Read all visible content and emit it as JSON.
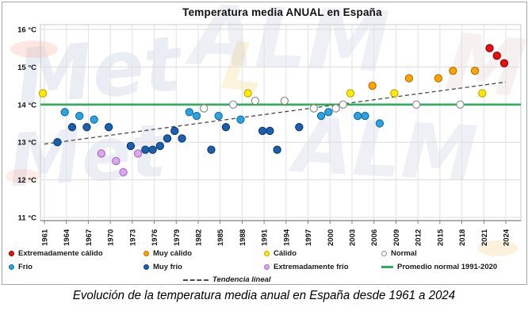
{
  "figure": {
    "title": "Temperatura media ANUAL en España",
    "caption": "Evolución de la temperatura media anual en España desde 1961 a 2024",
    "watermark_words": [
      "Met",
      "ALM"
    ]
  },
  "chart_data": {
    "type": "scatter",
    "title": "Temperatura media ANUAL en España",
    "xlabel": "",
    "ylabel": "",
    "ylim": [
      11,
      16
    ],
    "y_ticks": [
      16,
      15,
      14,
      13,
      12,
      11
    ],
    "y_tick_labels": [
      "16 °C",
      "15 °C",
      "14 °C",
      "13 °C",
      "12 °C",
      "11 °C"
    ],
    "x_ticks": [
      1961,
      1964,
      1967,
      1970,
      1973,
      1976,
      1979,
      1982,
      1985,
      1988,
      1991,
      1994,
      1997,
      2000,
      2003,
      2006,
      2009,
      2012,
      2015,
      2018,
      2021,
      2024
    ],
    "xlim": [
      1961,
      2024
    ],
    "grid": true,
    "legend_position": "bottom",
    "categories": {
      "extremadamente_calido": {
        "label": "Extremadamente cálido",
        "fill": "#e81010",
        "stroke": "#990000"
      },
      "muy_calido": {
        "label": "Muy cálido",
        "fill": "#f9a602",
        "stroke": "#c07000"
      },
      "calido": {
        "label": "Cálido",
        "fill": "#ffec00",
        "stroke": "#caa800"
      },
      "normal": {
        "label": "Normal",
        "fill": "#ffffff",
        "stroke": "#8c8c8c"
      },
      "frio": {
        "label": "Frío",
        "fill": "#2ba3e0",
        "stroke": "#1672a8"
      },
      "muy_frio": {
        "label": "Muy frío",
        "fill": "#1a5fb0",
        "stroke": "#123f73"
      },
      "extremadamente_frio": {
        "label": "Extremadamente frío",
        "fill": "#d9a9e8",
        "stroke": "#a86fc8"
      }
    },
    "normal_line": {
      "value": 14.0,
      "label": "Promedio normal 1991-2020",
      "color": "#2cae5e"
    },
    "trend_line": {
      "label": "Tendencia lineal",
      "color": "#4a4a4a",
      "from": {
        "year": 1961,
        "temp": 12.95
      },
      "to": {
        "year": 2024,
        "temp": 14.6
      }
    },
    "points": [
      {
        "year": 1961,
        "temp": 14.3,
        "cat": "calido"
      },
      {
        "year": 1963,
        "temp": 13.0,
        "cat": "muy_frio"
      },
      {
        "year": 1964,
        "temp": 13.8,
        "cat": "frio"
      },
      {
        "year": 1965,
        "temp": 13.4,
        "cat": "muy_frio"
      },
      {
        "year": 1966,
        "temp": 13.7,
        "cat": "frio"
      },
      {
        "year": 1967,
        "temp": 13.4,
        "cat": "muy_frio"
      },
      {
        "year": 1968,
        "temp": 13.6,
        "cat": "frio"
      },
      {
        "year": 1969,
        "temp": 12.7,
        "cat": "extremadamente_frio"
      },
      {
        "year": 1970,
        "temp": 13.4,
        "cat": "muy_frio"
      },
      {
        "year": 1971,
        "temp": 12.5,
        "cat": "extremadamente_frio"
      },
      {
        "year": 1972,
        "temp": 12.2,
        "cat": "extremadamente_frio"
      },
      {
        "year": 1973,
        "temp": 12.9,
        "cat": "muy_frio"
      },
      {
        "year": 1974,
        "temp": 12.7,
        "cat": "extremadamente_frio"
      },
      {
        "year": 1975,
        "temp": 12.8,
        "cat": "muy_frio"
      },
      {
        "year": 1976,
        "temp": 12.8,
        "cat": "muy_frio"
      },
      {
        "year": 1977,
        "temp": 12.9,
        "cat": "muy_frio"
      },
      {
        "year": 1978,
        "temp": 13.1,
        "cat": "muy_frio"
      },
      {
        "year": 1979,
        "temp": 13.3,
        "cat": "muy_frio"
      },
      {
        "year": 1980,
        "temp": 13.1,
        "cat": "muy_frio"
      },
      {
        "year": 1981,
        "temp": 13.8,
        "cat": "frio"
      },
      {
        "year": 1982,
        "temp": 13.7,
        "cat": "frio"
      },
      {
        "year": 1983,
        "temp": 13.9,
        "cat": "normal"
      },
      {
        "year": 1984,
        "temp": 12.8,
        "cat": "muy_frio"
      },
      {
        "year": 1985,
        "temp": 13.7,
        "cat": "frio"
      },
      {
        "year": 1986,
        "temp": 13.4,
        "cat": "muy_frio"
      },
      {
        "year": 1987,
        "temp": 14.0,
        "cat": "normal"
      },
      {
        "year": 1988,
        "temp": 13.6,
        "cat": "frio"
      },
      {
        "year": 1989,
        "temp": 14.3,
        "cat": "calido"
      },
      {
        "year": 1990,
        "temp": 14.1,
        "cat": "normal"
      },
      {
        "year": 1991,
        "temp": 13.3,
        "cat": "muy_frio"
      },
      {
        "year": 1992,
        "temp": 13.3,
        "cat": "muy_frio"
      },
      {
        "year": 1993,
        "temp": 12.8,
        "cat": "muy_frio"
      },
      {
        "year": 1994,
        "temp": 14.1,
        "cat": "normal"
      },
      {
        "year": 1996,
        "temp": 13.4,
        "cat": "muy_frio"
      },
      {
        "year": 1998,
        "temp": 13.9,
        "cat": "normal"
      },
      {
        "year": 1999,
        "temp": 13.7,
        "cat": "frio"
      },
      {
        "year": 2000,
        "temp": 13.8,
        "cat": "frio"
      },
      {
        "year": 2001,
        "temp": 13.9,
        "cat": "normal"
      },
      {
        "year": 2002,
        "temp": 14.0,
        "cat": "normal"
      },
      {
        "year": 2003,
        "temp": 14.3,
        "cat": "calido"
      },
      {
        "year": 2004,
        "temp": 13.7,
        "cat": "frio"
      },
      {
        "year": 2005,
        "temp": 13.7,
        "cat": "frio"
      },
      {
        "year": 2006,
        "temp": 14.5,
        "cat": "muy_calido"
      },
      {
        "year": 2007,
        "temp": 13.5,
        "cat": "frio"
      },
      {
        "year": 2009,
        "temp": 14.3,
        "cat": "calido"
      },
      {
        "year": 2011,
        "temp": 14.7,
        "cat": "muy_calido"
      },
      {
        "year": 2012,
        "temp": 14.0,
        "cat": "normal"
      },
      {
        "year": 2015,
        "temp": 14.7,
        "cat": "muy_calido"
      },
      {
        "year": 2017,
        "temp": 14.9,
        "cat": "muy_calido"
      },
      {
        "year": 2018,
        "temp": 14.0,
        "cat": "normal"
      },
      {
        "year": 2020,
        "temp": 14.9,
        "cat": "muy_calido"
      },
      {
        "year": 2021,
        "temp": 14.3,
        "cat": "calido"
      },
      {
        "year": 2022,
        "temp": 15.5,
        "cat": "extremadamente_calido"
      },
      {
        "year": 2023,
        "temp": 15.3,
        "cat": "extremadamente_calido"
      },
      {
        "year": 2024,
        "temp": 15.1,
        "cat": "extremadamente_calido"
      }
    ],
    "legend_rows": [
      [
        "extremadamente_calido",
        "muy_calido",
        "calido",
        "normal"
      ],
      [
        "frio",
        "muy_frio",
        "extremadamente_frio",
        "normal_line"
      ],
      [
        "trend_line"
      ]
    ]
  }
}
